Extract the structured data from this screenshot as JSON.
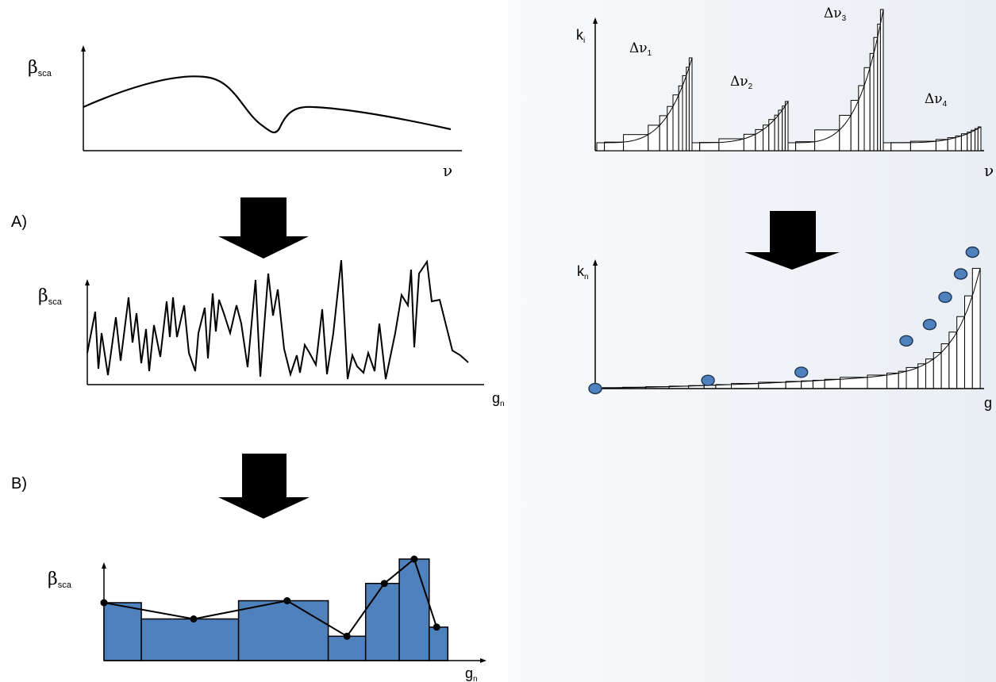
{
  "colors": {
    "bar_fill": "#4f81bd",
    "point_fill": "#4f81bd",
    "ink": "#000000",
    "arrow": "#000000"
  },
  "step_labels": {
    "a": "A)",
    "b": "B)"
  },
  "top_left": {
    "y_symbol": "β",
    "y_sub": "sca",
    "x_symbol": "ν"
  },
  "middle_left": {
    "y_symbol": "β",
    "y_sub": "sca",
    "x_symbol": "g",
    "x_sub": "n"
  },
  "bottom_left": {
    "y_symbol": "β",
    "y_sub": "sca",
    "x_symbol": "g",
    "x_sub": "n",
    "bins": [
      {
        "g": [
          0.0,
          0.1
        ],
        "value": 0.57
      },
      {
        "g": [
          0.1,
          0.36
        ],
        "value": 0.41
      },
      {
        "g": [
          0.36,
          0.6
        ],
        "value": 0.59
      },
      {
        "g": [
          0.6,
          0.7
        ],
        "value": 0.24
      },
      {
        "g": [
          0.7,
          0.79
        ],
        "value": 0.76
      },
      {
        "g": [
          0.79,
          0.87
        ],
        "value": 1.0
      },
      {
        "g": [
          0.87,
          0.92
        ],
        "value": 0.33
      }
    ],
    "points": [
      [
        0.0,
        0.57
      ],
      [
        0.24,
        0.41
      ],
      [
        0.49,
        0.59
      ],
      [
        0.65,
        0.24
      ],
      [
        0.75,
        0.76
      ],
      [
        0.83,
        1.0
      ],
      [
        0.89,
        0.33
      ]
    ]
  },
  "top_right": {
    "y_symbol": "k",
    "y_sub": "i",
    "x_symbol": "ν",
    "intervals": [
      {
        "symbol": "Δν",
        "sub": "1"
      },
      {
        "symbol": "Δν",
        "sub": "2"
      },
      {
        "symbol": "Δν",
        "sub": "3"
      },
      {
        "symbol": "Δν",
        "sub": "4"
      }
    ]
  },
  "bottom_right": {
    "y_symbol": "k",
    "y_sub": "n",
    "x_symbol": "g",
    "points": [
      [
        0.0,
        0.0
      ],
      [
        0.29,
        0.06
      ],
      [
        0.53,
        0.12
      ],
      [
        0.8,
        0.35
      ],
      [
        0.86,
        0.47
      ],
      [
        0.9,
        0.67
      ],
      [
        0.94,
        0.84
      ],
      [
        0.97,
        1.0
      ]
    ]
  }
}
